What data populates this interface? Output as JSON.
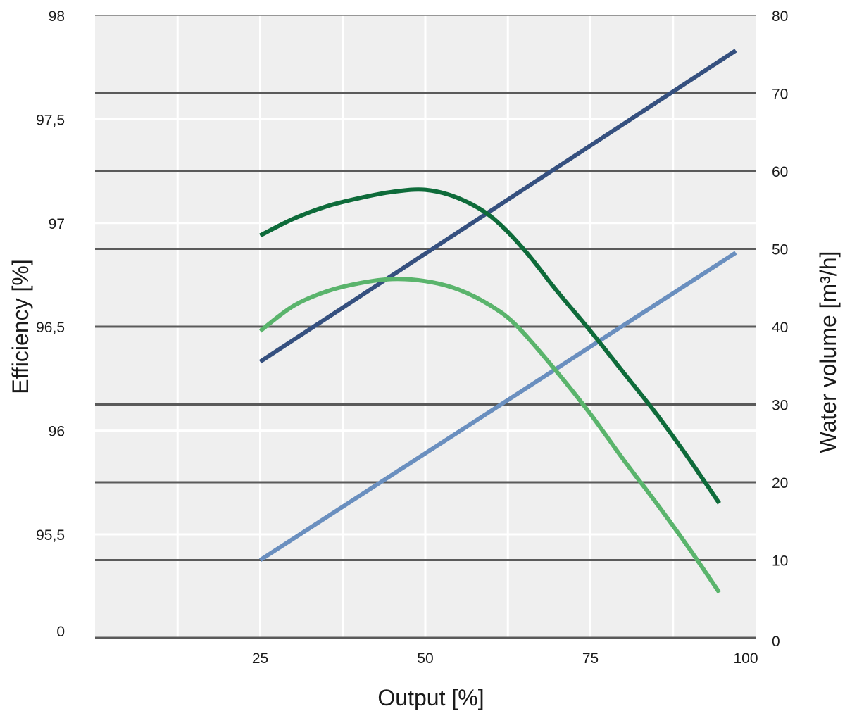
{
  "chart_data": {
    "type": "line",
    "title": "",
    "xlabel": "Output [%]",
    "ylabel_left": "Efficiency [%]",
    "ylabel_right": "Water volume [m³/h]",
    "x_ticks": [
      {
        "value": 25,
        "label": "25"
      },
      {
        "value": 50,
        "label": "50"
      },
      {
        "value": 75,
        "label": "75"
      },
      {
        "value": 100,
        "label": "100"
      }
    ],
    "xlim": [
      0,
      100
    ],
    "y_left_ticks": [
      {
        "label": "98"
      },
      {
        "label": "97,5"
      },
      {
        "label": "97"
      },
      {
        "label": "96,5"
      },
      {
        "label": "96"
      },
      {
        "label": "95,5"
      },
      {
        "label": "0"
      }
    ],
    "y_left_note": "broken axis: 0 at bottom, then 95.5 to 98 in steps of 0.5",
    "y_right_ticks": [
      "0",
      "10",
      "20",
      "30",
      "40",
      "50",
      "60",
      "70",
      "80"
    ],
    "y_right_lim": [
      0,
      80
    ],
    "grid": true,
    "background": "#efefef",
    "series": [
      {
        "axis": "right",
        "color": "#35507f",
        "points": [
          [
            25,
            35.5
          ],
          [
            97,
            75.5
          ]
        ]
      },
      {
        "axis": "right",
        "color": "#6a8fbf",
        "points": [
          [
            25,
            10
          ],
          [
            97,
            49.5
          ]
        ]
      },
      {
        "axis": "left",
        "color": "#0e6b3a",
        "points": [
          [
            25,
            96.94
          ],
          [
            30,
            97.02
          ],
          [
            35,
            97.08
          ],
          [
            40,
            97.12
          ],
          [
            45,
            97.15
          ],
          [
            50,
            97.16
          ],
          [
            55,
            97.12
          ],
          [
            60,
            97.03
          ],
          [
            65,
            96.87
          ],
          [
            70,
            96.67
          ],
          [
            75,
            96.48
          ],
          [
            80,
            96.28
          ],
          [
            85,
            96.08
          ],
          [
            90,
            95.86
          ],
          [
            94.5,
            95.65
          ]
        ]
      },
      {
        "axis": "left",
        "color": "#5ab46c",
        "points": [
          [
            25,
            96.48
          ],
          [
            30,
            96.6
          ],
          [
            35,
            96.67
          ],
          [
            40,
            96.71
          ],
          [
            45,
            96.73
          ],
          [
            50,
            96.72
          ],
          [
            55,
            96.68
          ],
          [
            60,
            96.6
          ],
          [
            64,
            96.5
          ],
          [
            70,
            96.28
          ],
          [
            75,
            96.08
          ],
          [
            80,
            95.86
          ],
          [
            85,
            95.65
          ],
          [
            90,
            95.43
          ],
          [
            94.5,
            95.22
          ]
        ]
      }
    ]
  }
}
